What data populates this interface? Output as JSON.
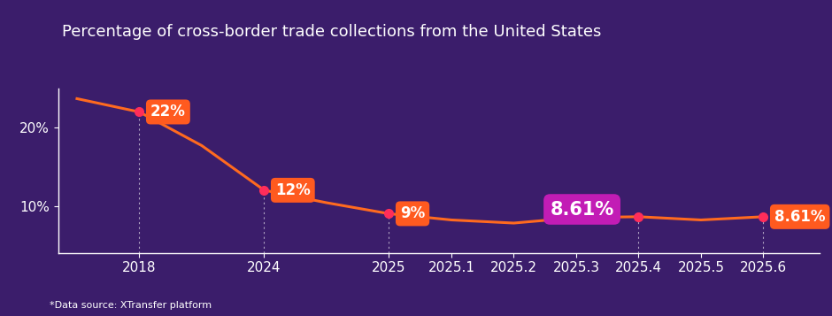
{
  "chart_data": {
    "type": "line",
    "title": "Percentage of cross-border trade collections from the United States",
    "footnote": "*Data source: XTransfer platform",
    "categories": [
      null,
      "2018",
      null,
      "2024",
      null,
      "2025",
      "2025.1",
      "2025.2",
      "2025.3",
      "2025.4",
      "2025.5",
      "2025.6"
    ],
    "values": [
      23.7,
      22,
      17.7,
      12,
      10.4,
      9,
      8.2,
      7.8,
      8.5,
      8.61,
      8.2,
      8.61
    ],
    "value_labels": [
      null,
      "22%",
      null,
      "12%",
      null,
      "9%",
      null,
      null,
      null,
      "8.61%",
      null,
      "8.61%"
    ],
    "data_labels": true,
    "color": "#ff6a1f",
    "ylim": [
      4,
      25
    ],
    "yticks": [
      {
        "value": 10,
        "label": "10%"
      },
      {
        "value": 20,
        "label": "20%"
      }
    ],
    "grid": false
  }
}
